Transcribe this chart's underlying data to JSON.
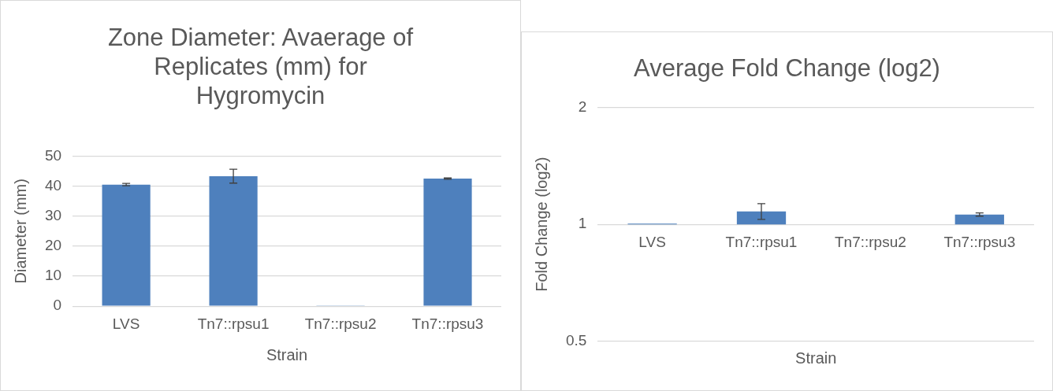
{
  "chart_data": [
    {
      "type": "bar",
      "title": "Zone Diameter: Avaerage of Replicates (mm) for Hygromycin",
      "xlabel": "Strain",
      "ylabel": "Diameter (mm)",
      "categories": [
        "LVS",
        "Tn7::rpsu1",
        "Tn7::rpsu2",
        "Tn7::rpsu3"
      ],
      "values": [
        40.5,
        43.3,
        0,
        42.5
      ],
      "errors": [
        0.4,
        2.3,
        null,
        0.2
      ],
      "color": "#4e80bd",
      "ylim": [
        0,
        50
      ],
      "yticks": [
        0,
        10,
        20,
        30,
        40,
        50
      ],
      "grid": "y",
      "legend": false
    },
    {
      "type": "bar",
      "title": "Average Fold Change (log2)",
      "xlabel": "Strain",
      "ylabel": "Fold Change (log2)",
      "categories": [
        "LVS",
        "Tn7::rpsu1",
        "Tn7::rpsu2",
        "Tn7::rpsu3"
      ],
      "base": [
        1,
        1,
        null,
        1
      ],
      "values": [
        0,
        0.08,
        null,
        0.06
      ],
      "errors": [
        null,
        0.05,
        null,
        0.01
      ],
      "color": "#4e80bd",
      "log": true,
      "ylim": [
        0.5,
        2
      ],
      "yticks": [
        0.5,
        1,
        2
      ],
      "grid": "y",
      "legend": false
    }
  ]
}
